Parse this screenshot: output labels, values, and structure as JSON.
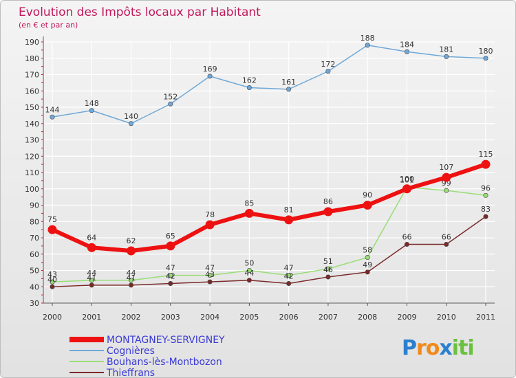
{
  "chart_data": {
    "type": "line",
    "title": "Evolution des Impôts locaux par Habitant",
    "subtitle": "(en € et par an)",
    "xlabel": "",
    "ylabel": "",
    "ylim": [
      30,
      190
    ],
    "yticks": [
      30,
      40,
      50,
      60,
      70,
      80,
      90,
      100,
      110,
      120,
      130,
      140,
      150,
      160,
      170,
      180,
      190
    ],
    "categories": [
      "2000",
      "2001",
      "2002",
      "2003",
      "2004",
      "2005",
      "2006",
      "2007",
      "2008",
      "2009",
      "2010",
      "2011"
    ],
    "grid": true,
    "legend_position": "bottom-left",
    "series": [
      {
        "name": "Cognières",
        "color": "#6fa8d8",
        "values": [
          144,
          148,
          140,
          152,
          169,
          162,
          161,
          172,
          188,
          184,
          181,
          180
        ]
      },
      {
        "name": "Bouhans-lès-Montbozon",
        "color": "#99dd77",
        "values": [
          43,
          44,
          44,
          47,
          47,
          50,
          47,
          51,
          58,
          101,
          99,
          96
        ]
      },
      {
        "name": "Thieffrans",
        "color": "#7a2a2a",
        "values": [
          40,
          41,
          41,
          42,
          43,
          44,
          42,
          46,
          49,
          66,
          66,
          83
        ]
      },
      {
        "name": "MONTAGNEY-SERVIGNEY",
        "color": "#ee1111",
        "values": [
          75,
          64,
          62,
          65,
          78,
          85,
          81,
          86,
          90,
          100,
          107,
          115
        ]
      }
    ],
    "legend_order": [
      "MONTAGNEY-SERVIGNEY",
      "Cognières",
      "Bouhans-lès-Montbozon",
      "Thieffrans"
    ]
  },
  "logo": {
    "letters": [
      "P",
      "r",
      "o",
      "x",
      "i",
      "t",
      "i"
    ],
    "colors": [
      "#2b7fd0",
      "#f08a1c",
      "#f08a1c",
      "#2b7fd0",
      "#6cc040",
      "#6cc040",
      "#6cc040"
    ]
  }
}
